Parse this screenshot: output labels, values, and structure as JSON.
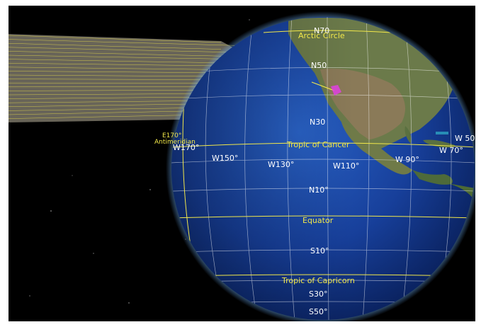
{
  "globe": {
    "parallels": {
      "n70": "N70",
      "n50": "N50",
      "n30": "N30",
      "n10": "N10°",
      "s10": "S10°",
      "s30": "S30°",
      "s50": "S50°"
    },
    "meridians": {
      "w170_left": "E170°",
      "w170": "W170°",
      "w150": "W150°",
      "w130": "W130°",
      "w110": "W110°",
      "w90": "W 90°",
      "w70": "W 70°",
      "w50": "W 50°"
    },
    "special_lines": {
      "arctic_circle": "Arctic Circle",
      "tropic_of_cancer": "Tropic of Cancer",
      "equator": "Equator",
      "tropic_of_capricorn": "Tropic of Capricorn",
      "antimeridian": "Antimeridian"
    }
  },
  "colors": {
    "background": "#000000",
    "grid_lines": "#ffffff",
    "special_lines": "#f2e84a",
    "highlight_pin": "#e040e0",
    "ray_band": "#bdb7a0"
  }
}
